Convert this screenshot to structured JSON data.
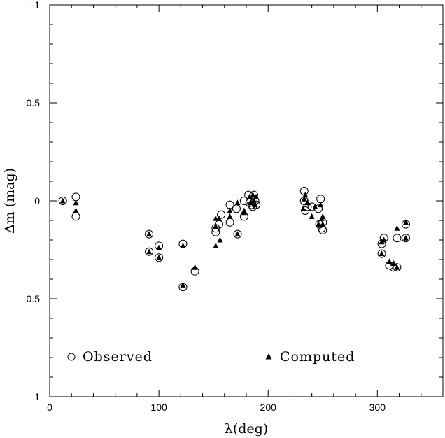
{
  "chart_data": {
    "type": "scatter",
    "xlabel": "λ(deg)",
    "ylabel": "Δm (mag)",
    "xlim": [
      0,
      360
    ],
    "ylim": [
      1,
      -1
    ],
    "y_axis_inverted": true,
    "x_ticks": [
      0,
      100,
      200,
      300
    ],
    "y_ticks": [
      -1,
      -0.5,
      0,
      0.5,
      1
    ],
    "y_tick_labels": [
      "-1",
      "-0.5",
      "0",
      "0.5",
      "1"
    ],
    "grid": false,
    "legend_placement": "bottom",
    "series": [
      {
        "name": "Observed",
        "marker": "open-circle",
        "points": [
          {
            "x": 12,
            "y": 0.0
          },
          {
            "x": 24,
            "y": -0.02
          },
          {
            "x": 24,
            "y": 0.08
          },
          {
            "x": 91,
            "y": 0.17
          },
          {
            "x": 91,
            "y": 0.26
          },
          {
            "x": 100,
            "y": 0.23
          },
          {
            "x": 100,
            "y": 0.29
          },
          {
            "x": 122,
            "y": 0.22
          },
          {
            "x": 122,
            "y": 0.44
          },
          {
            "x": 133,
            "y": 0.36
          },
          {
            "x": 152,
            "y": 0.14
          },
          {
            "x": 152,
            "y": 0.16
          },
          {
            "x": 155,
            "y": 0.12
          },
          {
            "x": 157,
            "y": 0.07
          },
          {
            "x": 165,
            "y": 0.02
          },
          {
            "x": 165,
            "y": 0.11
          },
          {
            "x": 172,
            "y": 0.17
          },
          {
            "x": 171,
            "y": 0.04
          },
          {
            "x": 178,
            "y": 0.08
          },
          {
            "x": 178,
            "y": 0.0
          },
          {
            "x": 182,
            "y": -0.03
          },
          {
            "x": 183,
            "y": 0.01
          },
          {
            "x": 185,
            "y": 0.02
          },
          {
            "x": 186,
            "y": 0.03
          },
          {
            "x": 187,
            "y": -0.03
          },
          {
            "x": 188,
            "y": 0.0
          },
          {
            "x": 189,
            "y": 0.02
          },
          {
            "x": 233,
            "y": -0.05
          },
          {
            "x": 233,
            "y": 0.0
          },
          {
            "x": 234,
            "y": 0.05
          },
          {
            "x": 236,
            "y": 0.03
          },
          {
            "x": 240,
            "y": 0.03
          },
          {
            "x": 246,
            "y": 0.04
          },
          {
            "x": 247,
            "y": 0.12
          },
          {
            "x": 248,
            "y": -0.01
          },
          {
            "x": 249,
            "y": 0.14
          },
          {
            "x": 250,
            "y": 0.11
          },
          {
            "x": 250,
            "y": 0.15
          },
          {
            "x": 304,
            "y": 0.22
          },
          {
            "x": 304,
            "y": 0.27
          },
          {
            "x": 306,
            "y": 0.19
          },
          {
            "x": 311,
            "y": 0.33
          },
          {
            "x": 315,
            "y": 0.34
          },
          {
            "x": 318,
            "y": 0.19
          },
          {
            "x": 318,
            "y": 0.34
          },
          {
            "x": 326,
            "y": 0.12
          },
          {
            "x": 326,
            "y": 0.19
          }
        ]
      },
      {
        "name": "Computed",
        "marker": "filled-triangle",
        "points": [
          {
            "x": 12,
            "y": 0.0
          },
          {
            "x": 24,
            "y": 0.01
          },
          {
            "x": 24,
            "y": 0.05
          },
          {
            "x": 91,
            "y": 0.17
          },
          {
            "x": 91,
            "y": 0.26
          },
          {
            "x": 100,
            "y": 0.24
          },
          {
            "x": 100,
            "y": 0.29
          },
          {
            "x": 122,
            "y": 0.23
          },
          {
            "x": 122,
            "y": 0.43
          },
          {
            "x": 133,
            "y": 0.34
          },
          {
            "x": 152,
            "y": 0.09
          },
          {
            "x": 152,
            "y": 0.13
          },
          {
            "x": 152,
            "y": 0.23
          },
          {
            "x": 155,
            "y": 0.09
          },
          {
            "x": 156,
            "y": 0.2
          },
          {
            "x": 165,
            "y": 0.05
          },
          {
            "x": 165,
            "y": 0.08
          },
          {
            "x": 172,
            "y": 0.01
          },
          {
            "x": 172,
            "y": 0.17
          },
          {
            "x": 178,
            "y": 0.05
          },
          {
            "x": 178,
            "y": 0.06
          },
          {
            "x": 183,
            "y": -0.02
          },
          {
            "x": 184,
            "y": 0.01
          },
          {
            "x": 186,
            "y": -0.03
          },
          {
            "x": 187,
            "y": 0.0
          },
          {
            "x": 188,
            "y": 0.02
          },
          {
            "x": 189,
            "y": -0.02
          },
          {
            "x": 232,
            "y": 0.04
          },
          {
            "x": 233,
            "y": -0.01
          },
          {
            "x": 234,
            "y": -0.03
          },
          {
            "x": 236,
            "y": 0.01
          },
          {
            "x": 240,
            "y": 0.08
          },
          {
            "x": 243,
            "y": 0.03
          },
          {
            "x": 246,
            "y": 0.12
          },
          {
            "x": 248,
            "y": 0.02
          },
          {
            "x": 249,
            "y": 0.09
          },
          {
            "x": 250,
            "y": 0.08
          },
          {
            "x": 250,
            "y": 0.12
          },
          {
            "x": 304,
            "y": 0.21
          },
          {
            "x": 304,
            "y": 0.27
          },
          {
            "x": 306,
            "y": 0.2
          },
          {
            "x": 311,
            "y": 0.31
          },
          {
            "x": 315,
            "y": 0.32
          },
          {
            "x": 318,
            "y": 0.14
          },
          {
            "x": 318,
            "y": 0.34
          },
          {
            "x": 326,
            "y": 0.11
          },
          {
            "x": 326,
            "y": 0.19
          }
        ]
      }
    ]
  }
}
